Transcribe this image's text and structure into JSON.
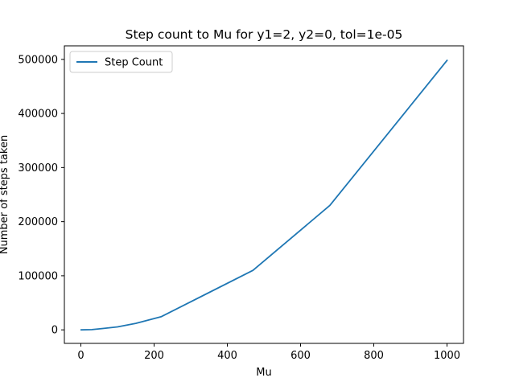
{
  "chart_data": {
    "type": "line",
    "title": "Step count to Mu for y1=2, y2=0, tol=1e-05",
    "xlabel": "Mu",
    "ylabel": "Number of steps taken",
    "xlim": [
      -45,
      1045
    ],
    "ylim": [
      -25000,
      525000
    ],
    "xticks": [
      0,
      200,
      400,
      600,
      800,
      1000
    ],
    "yticks": [
      0,
      100000,
      200000,
      300000,
      400000,
      500000
    ],
    "grid": false,
    "legend_position": "top-left",
    "series": [
      {
        "name": "Step Count",
        "color": "#1f77b4",
        "x": [
          1,
          30,
          60,
          100,
          150,
          220,
          470,
          680,
          1000
        ],
        "y": [
          0,
          500,
          2500,
          5500,
          12000,
          24500,
          110000,
          230000,
          498000
        ]
      }
    ]
  }
}
